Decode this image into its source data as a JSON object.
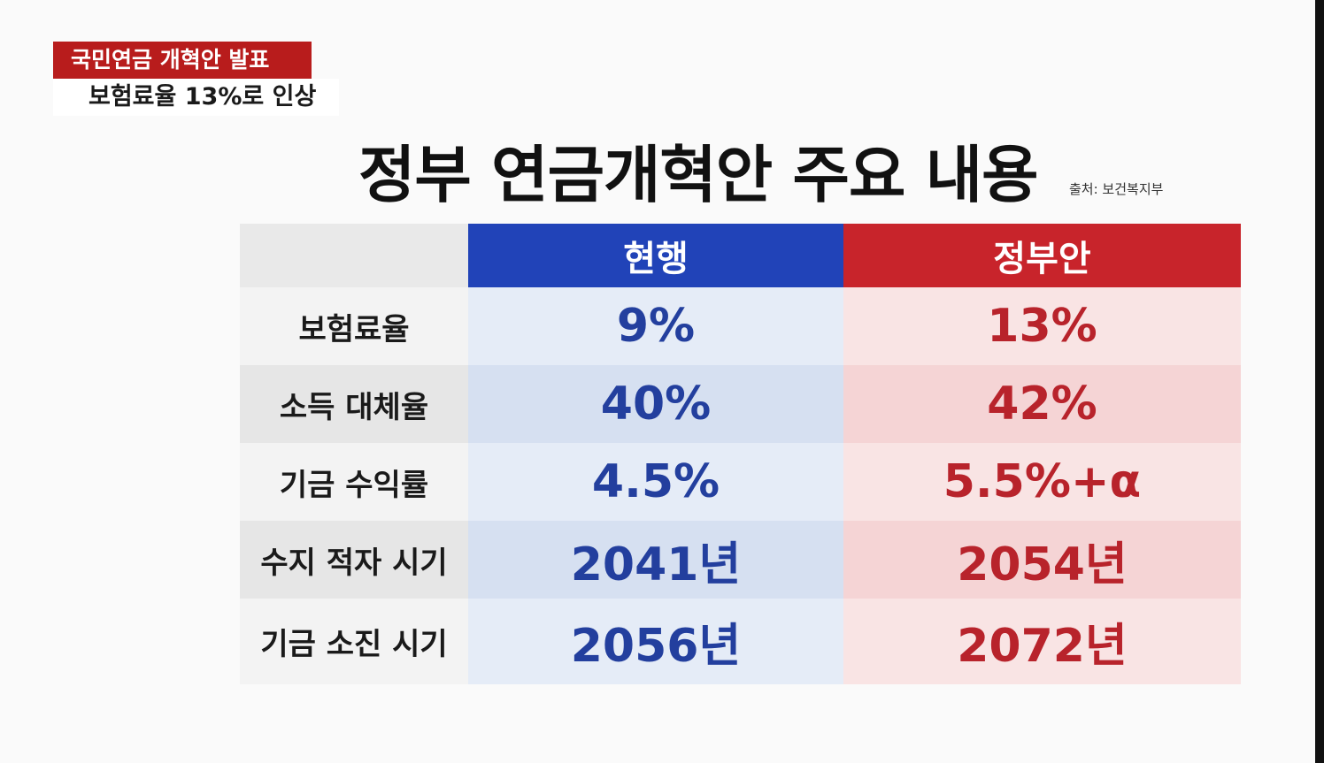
{
  "caption": {
    "headline": "국민연금 개혁안 발표",
    "subline": "보험료율 13%로 인상"
  },
  "title": "정부 연금개혁안 주요 내용",
  "source": "출처: 보건복지부",
  "table": {
    "headers": [
      "",
      "현행",
      "정부안"
    ],
    "rows": [
      {
        "label": "보험료율",
        "current": "9%",
        "government": "13%"
      },
      {
        "label": "소득 대체율",
        "current": "40%",
        "government": "42%"
      },
      {
        "label": "기금 수익률",
        "current": "4.5%",
        "government": "5.5%+α"
      },
      {
        "label": "수지 적자 시기",
        "current": "2041년",
        "government": "2054년"
      },
      {
        "label": "기금 소진 시기",
        "current": "2056년",
        "government": "2072년"
      }
    ]
  },
  "colors": {
    "current_header": "#2143b8",
    "government_header": "#c8242b",
    "current_text": "#233f9e",
    "government_text": "#b8232b",
    "caption_red": "#b81c1c"
  }
}
